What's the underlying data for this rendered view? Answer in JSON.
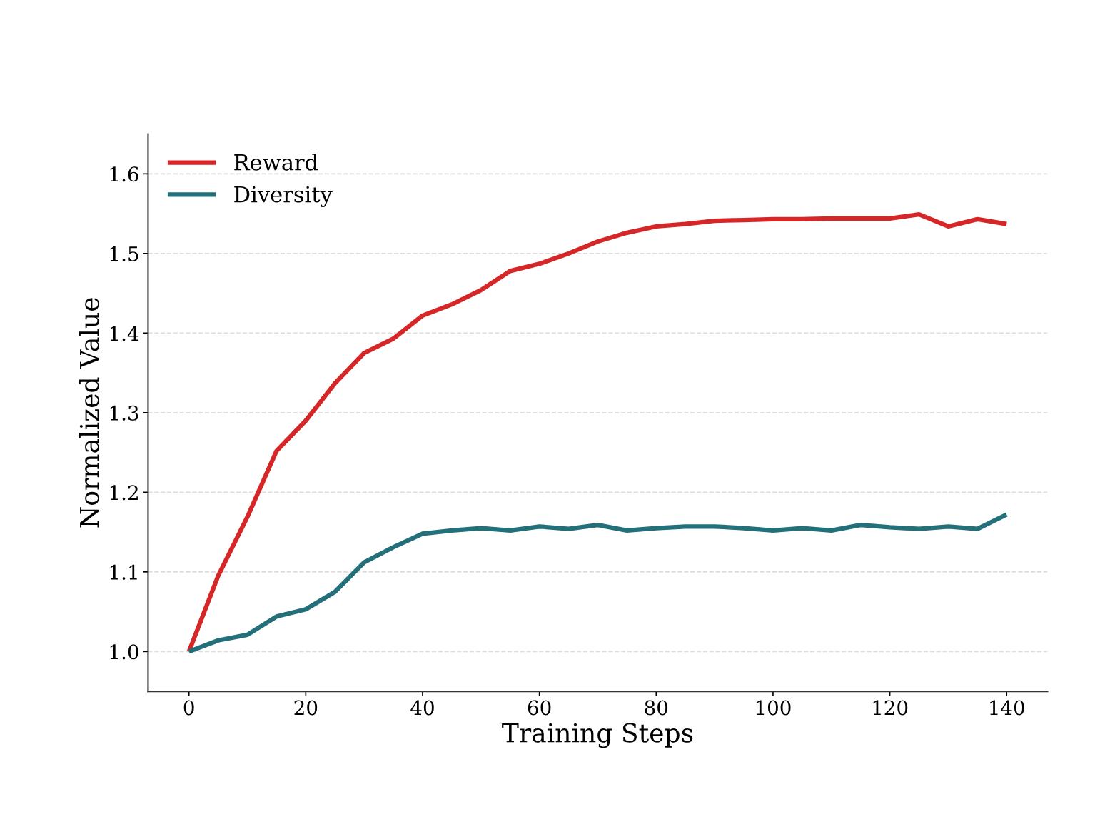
{
  "chart_data": {
    "type": "line",
    "xlabel": "Training Steps",
    "ylabel": "Normalized Value",
    "x": [
      0,
      5,
      10,
      15,
      20,
      25,
      30,
      35,
      40,
      45,
      50,
      55,
      60,
      65,
      70,
      75,
      80,
      85,
      90,
      95,
      100,
      105,
      110,
      115,
      120,
      125,
      130,
      135,
      140
    ],
    "series": [
      {
        "name": "Reward",
        "color": "#d62728",
        "values": [
          1.0,
          1.095,
          1.169,
          1.252,
          1.29,
          1.337,
          1.375,
          1.393,
          1.422,
          1.436,
          1.454,
          1.478,
          1.487,
          1.5,
          1.515,
          1.526,
          1.534,
          1.537,
          1.541,
          1.542,
          1.543,
          1.543,
          1.544,
          1.544,
          1.544,
          1.549,
          1.534,
          1.543,
          1.537
        ]
      },
      {
        "name": "Diversity",
        "color": "#23707a",
        "values": [
          1.0,
          1.014,
          1.021,
          1.044,
          1.053,
          1.075,
          1.112,
          1.131,
          1.148,
          1.152,
          1.155,
          1.152,
          1.157,
          1.154,
          1.159,
          1.152,
          1.155,
          1.157,
          1.157,
          1.155,
          1.152,
          1.155,
          1.152,
          1.159,
          1.156,
          1.154,
          1.157,
          1.154,
          1.172
        ]
      }
    ],
    "xlim": [
      -7,
      147
    ],
    "xticks": [
      0,
      20,
      40,
      60,
      80,
      100,
      120,
      140
    ],
    "ylim": [
      0.95,
      1.65
    ],
    "yticks": [
      {
        "value": 1.0,
        "label": "1.0"
      },
      {
        "value": 1.1,
        "label": "1.1"
      },
      {
        "value": 1.2,
        "label": "1.2"
      },
      {
        "value": 1.3,
        "label": "1.3"
      },
      {
        "value": 1.4,
        "label": "1.4"
      },
      {
        "value": 1.5,
        "label": "1.5"
      },
      {
        "value": 1.6,
        "label": "1.6"
      }
    ],
    "grid": "y",
    "legend": "top left",
    "line_style": "solid",
    "marker": "none"
  }
}
